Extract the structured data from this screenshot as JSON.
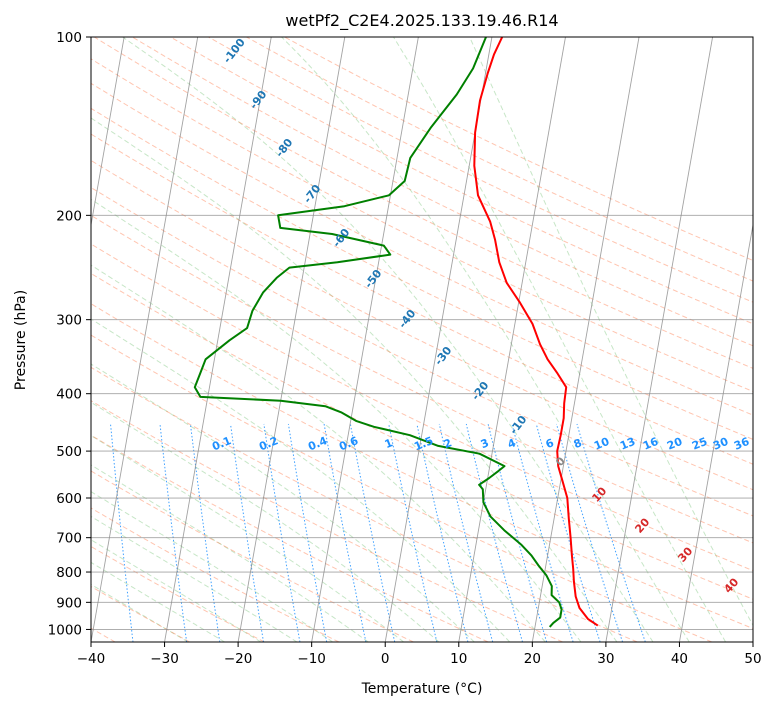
{
  "chart_data": {
    "type": "line",
    "title": "wetPf2_C2E4.2025.133.19.46.R14",
    "xlabel": "Temperature (°C)",
    "ylabel": "Pressure (hPa)",
    "xlim": [
      -40,
      50
    ],
    "ylim": [
      1050,
      100
    ],
    "y_scale": "log",
    "grid": true,
    "x_ticks": [
      -40,
      -30,
      -20,
      -10,
      0,
      10,
      20,
      30,
      40,
      50
    ],
    "y_ticks": [
      100,
      200,
      300,
      400,
      500,
      600,
      700,
      800,
      900,
      1000
    ],
    "y_tick_labels": [
      "100",
      "200",
      "300",
      "400",
      "500",
      "600",
      "700",
      "800",
      "900",
      "1000"
    ],
    "x_tick_labels": [
      "−40",
      "−30",
      "−20",
      "−10",
      "0",
      "10",
      "20",
      "30",
      "40",
      "50"
    ],
    "series": [
      {
        "color": "#ff0000",
        "points": [
          [
            28.5,
            985
          ],
          [
            27.0,
            960
          ],
          [
            25.6,
            920
          ],
          [
            24.8,
            880
          ],
          [
            24.2,
            830
          ],
          [
            23.8,
            790
          ],
          [
            23.3,
            750
          ],
          [
            22.7,
            700
          ],
          [
            22.0,
            650
          ],
          [
            21.3,
            600
          ],
          [
            20.2,
            560
          ],
          [
            19.3,
            530
          ],
          [
            18.8,
            500
          ],
          [
            18.9,
            470
          ],
          [
            18.9,
            440
          ],
          [
            18.6,
            415
          ],
          [
            18.5,
            390
          ],
          [
            17.0,
            370
          ],
          [
            15.3,
            350
          ],
          [
            13.9,
            330
          ],
          [
            12.4,
            305
          ],
          [
            10.1,
            280
          ],
          [
            7.9,
            260
          ],
          [
            6.4,
            240
          ],
          [
            5.3,
            220
          ],
          [
            4.2,
            205
          ],
          [
            1.9,
            185
          ],
          [
            0.7,
            165
          ],
          [
            0.0,
            145
          ],
          [
            -0.1,
            128
          ],
          [
            0.3,
            115
          ],
          [
            0.7,
            107
          ],
          [
            1.4,
            100
          ]
        ]
      },
      {
        "color": "#008000",
        "points": [
          [
            22.0,
            990
          ],
          [
            22.4,
            975
          ],
          [
            23.2,
            955
          ],
          [
            23.2,
            925
          ],
          [
            22.7,
            900
          ],
          [
            21.5,
            875
          ],
          [
            21.3,
            845
          ],
          [
            20.3,
            810
          ],
          [
            19.0,
            780
          ],
          [
            17.8,
            750
          ],
          [
            16.2,
            720
          ],
          [
            13.5,
            680
          ],
          [
            11.3,
            645
          ],
          [
            10.0,
            610
          ],
          [
            9.6,
            580
          ],
          [
            9.0,
            570
          ],
          [
            10.2,
            555
          ],
          [
            11.3,
            540
          ],
          [
            12.0,
            530
          ],
          [
            8.3,
            505
          ],
          [
            2.5,
            490
          ],
          [
            -1.6,
            470
          ],
          [
            -6.7,
            455
          ],
          [
            -9.2,
            445
          ],
          [
            -11.5,
            430
          ],
          [
            -13.8,
            420
          ],
          [
            -20.0,
            411
          ],
          [
            -31.0,
            405
          ],
          [
            -32.0,
            390
          ],
          [
            -31.6,
            370
          ],
          [
            -31.2,
            350
          ],
          [
            -28.4,
            325
          ],
          [
            -26.3,
            310
          ],
          [
            -26.0,
            290
          ],
          [
            -25.0,
            270
          ],
          [
            -23.5,
            255
          ],
          [
            -22.0,
            245
          ],
          [
            -15.6,
            240
          ],
          [
            -8.6,
            233
          ],
          [
            -9.7,
            225
          ],
          [
            -17.0,
            215
          ],
          [
            -24.2,
            210
          ],
          [
            -24.8,
            200
          ],
          [
            -16.0,
            193
          ],
          [
            -10.2,
            185
          ],
          [
            -8.4,
            175
          ],
          [
            -8.2,
            160
          ],
          [
            -6.1,
            142
          ],
          [
            -3.4,
            125
          ],
          [
            -1.8,
            113
          ],
          [
            -0.8,
            100
          ]
        ]
      }
    ],
    "dry_adiabat_labels": [
      "-100",
      "-90",
      "-80",
      "-70",
      "-60",
      "-50",
      "-40",
      "-30",
      "-20",
      "-10"
    ],
    "moist_adiabat_labels": [
      "0",
      "10",
      "20",
      "30",
      "40"
    ],
    "mixing_ratio_labels": [
      "0.1",
      "0.2",
      "0.4",
      "0.6",
      "1",
      "1.5",
      "2",
      "3",
      "4",
      "6",
      "8",
      "10",
      "13",
      "16",
      "20",
      "25",
      "30",
      "36"
    ],
    "mixing_ratio_values": [
      0.1,
      0.2,
      0.4,
      0.6,
      1,
      1.5,
      2,
      3,
      4,
      6,
      8,
      10,
      13,
      16,
      20,
      25,
      30,
      36
    ]
  }
}
